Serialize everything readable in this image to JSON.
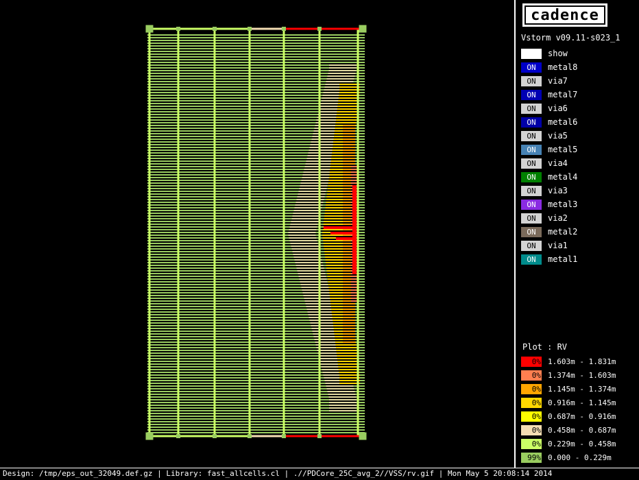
{
  "logo": {
    "text": "cadence"
  },
  "version": "Vstorm v09.11-s023_1",
  "layers": [
    {
      "name": "show",
      "state": "",
      "color": "#ffffff",
      "dark": false
    },
    {
      "name": "metal8",
      "state": "ON",
      "color": "#0000c8",
      "dark": true
    },
    {
      "name": "via7",
      "state": "ON",
      "color": "#d3d3d3",
      "dark": false
    },
    {
      "name": "metal7",
      "state": "ON",
      "color": "#0000b4",
      "dark": true
    },
    {
      "name": "via6",
      "state": "ON",
      "color": "#d3d3d3",
      "dark": false
    },
    {
      "name": "metal6",
      "state": "ON",
      "color": "#0000a8",
      "dark": true
    },
    {
      "name": "via5",
      "state": "ON",
      "color": "#d3d3d3",
      "dark": false
    },
    {
      "name": "metal5",
      "state": "ON",
      "color": "#4682b4",
      "dark": true
    },
    {
      "name": "via4",
      "state": "ON",
      "color": "#d3d3d3",
      "dark": false
    },
    {
      "name": "metal4",
      "state": "ON",
      "color": "#008000",
      "dark": true
    },
    {
      "name": "via3",
      "state": "ON",
      "color": "#d3d3d3",
      "dark": false
    },
    {
      "name": "metal3",
      "state": "ON",
      "color": "#8a2be2",
      "dark": true
    },
    {
      "name": "via2",
      "state": "ON",
      "color": "#d3d3d3",
      "dark": false
    },
    {
      "name": "metal2",
      "state": "ON",
      "color": "#7a6a5a",
      "dark": true
    },
    {
      "name": "via1",
      "state": "ON",
      "color": "#d3d3d3",
      "dark": false
    },
    {
      "name": "metal1",
      "state": "ON",
      "color": "#008b8b",
      "dark": true
    }
  ],
  "plot": {
    "title": "Plot : RV",
    "ranges": [
      {
        "pct": "0%",
        "label": "1.603m - 1.831m",
        "color": "#ff0000"
      },
      {
        "pct": "0%",
        "label": "1.374m - 1.603m",
        "color": "#ff7f50"
      },
      {
        "pct": "0%",
        "label": "1.145m - 1.374m",
        "color": "#ffa500"
      },
      {
        "pct": "0%",
        "label": "0.916m - 1.145m",
        "color": "#ffd700"
      },
      {
        "pct": "0%",
        "label": "0.687m - 0.916m",
        "color": "#ffff00"
      },
      {
        "pct": "0%",
        "label": "0.458m - 0.687m",
        "color": "#f5deb3"
      },
      {
        "pct": "0%",
        "label": "0.229m - 0.458m",
        "color": "#ccff66"
      },
      {
        "pct": "99%",
        "label": "0.000 - 0.229m",
        "color": "#9acd60"
      }
    ]
  },
  "status_bar": "Design: /tmp/eps_out_32049.def.gz | Library: fast_allcells.cl | .//PDCore_25C_avg_2//VSS/rv.gif | Mon May  5 20:08:14 2014"
}
